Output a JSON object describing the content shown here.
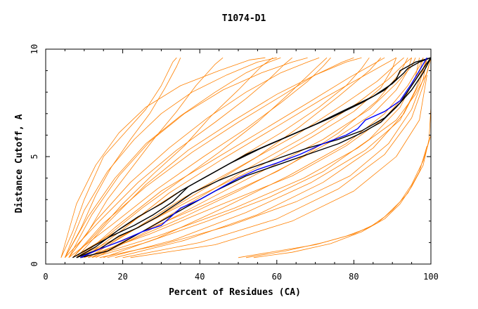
{
  "chart_data": {
    "type": "line",
    "title": "T1074-D1",
    "xlabel": "Percent of Residues (CA)",
    "ylabel": "Distance Cutoff, A",
    "xlim": [
      0,
      100
    ],
    "ylim": [
      0,
      10
    ],
    "x_ticks": [
      "0",
      "20",
      "40",
      "60",
      "80",
      "100"
    ],
    "y_ticks": [
      "0",
      "5",
      "10"
    ],
    "grid": false,
    "legend": "none",
    "colors": {
      "others": "#ff8000",
      "highlight_black": "#000000",
      "highlight_blue": "#0000ff"
    },
    "series": [
      {
        "color": "#ff8000",
        "x": [
          4,
          7,
          10,
          13,
          15,
          20,
          26,
          30,
          33,
          34
        ],
        "y": [
          0.3,
          1.5,
          3,
          4.2,
          5,
          6,
          7.2,
          8.3,
          9.4,
          9.6
        ]
      },
      {
        "color": "#ff8000",
        "x": [
          5,
          9,
          13,
          17,
          22,
          27,
          31,
          34,
          35
        ],
        "y": [
          0.3,
          1.6,
          3.2,
          4.5,
          5.8,
          7,
          8.2,
          9.2,
          9.6
        ]
      },
      {
        "color": "#ff8000",
        "x": [
          6,
          11,
          16,
          22,
          28,
          34,
          39,
          44,
          46
        ],
        "y": [
          0.3,
          1.5,
          3,
          4.4,
          5.8,
          7.1,
          8.3,
          9.3,
          9.6
        ]
      },
      {
        "color": "#ff8000",
        "x": [
          7,
          13,
          20,
          28,
          36,
          43,
          50,
          56,
          59
        ],
        "y": [
          0.3,
          1.4,
          2.8,
          4.2,
          5.5,
          6.9,
          8.1,
          9.2,
          9.6
        ]
      },
      {
        "color": "#ff8000",
        "x": [
          8,
          16,
          25,
          35,
          45,
          55,
          63,
          70,
          73
        ],
        "y": [
          0.3,
          1.3,
          2.6,
          3.9,
          5.2,
          6.6,
          7.9,
          9.1,
          9.6
        ]
      },
      {
        "color": "#ff8000",
        "x": [
          9,
          19,
          31,
          43,
          55,
          66,
          76,
          84,
          87
        ],
        "y": [
          0.3,
          1.2,
          2.4,
          3.7,
          5,
          6.4,
          7.8,
          9,
          9.6
        ]
      },
      {
        "color": "#ff8000",
        "x": [
          10,
          22,
          36,
          50,
          64,
          76,
          86,
          92,
          94
        ],
        "y": [
          0.3,
          1.1,
          2.2,
          3.4,
          4.7,
          6.1,
          7.6,
          8.9,
          9.6
        ]
      },
      {
        "color": "#ff8000",
        "x": [
          12,
          26,
          42,
          58,
          72,
          84,
          92,
          96,
          97
        ],
        "y": [
          0.3,
          1,
          2,
          3.1,
          4.3,
          5.8,
          7.3,
          8.7,
          9.6
        ]
      },
      {
        "color": "#ff8000",
        "x": [
          14,
          30,
          48,
          65,
          79,
          89,
          95,
          98,
          99
        ],
        "y": [
          0.3,
          0.9,
          1.8,
          2.9,
          4.1,
          5.6,
          7.2,
          8.6,
          9.6
        ]
      },
      {
        "color": "#ff8000",
        "x": [
          5,
          14,
          24,
          34,
          44,
          52,
          58,
          62,
          64
        ],
        "y": [
          0.3,
          2,
          3.8,
          5.3,
          6.6,
          7.7,
          8.6,
          9.3,
          9.6
        ]
      },
      {
        "color": "#ff8000",
        "x": [
          6,
          17,
          29,
          41,
          52,
          61,
          68,
          72,
          74
        ],
        "y": [
          0.3,
          1.8,
          3.5,
          5,
          6.3,
          7.5,
          8.5,
          9.2,
          9.6
        ]
      },
      {
        "color": "#ff8000",
        "x": [
          7,
          20,
          34,
          48,
          61,
          71,
          78,
          82,
          84
        ],
        "y": [
          0.3,
          1.7,
          3.3,
          4.7,
          6.1,
          7.3,
          8.3,
          9.1,
          9.6
        ]
      },
      {
        "color": "#ff8000",
        "x": [
          8,
          23,
          39,
          55,
          69,
          80,
          87,
          90,
          91
        ],
        "y": [
          0.3,
          1.6,
          3.1,
          4.5,
          5.9,
          7.1,
          8.2,
          9.1,
          9.6
        ]
      },
      {
        "color": "#ff8000",
        "x": [
          9,
          25,
          43,
          60,
          74,
          85,
          91,
          94,
          95
        ],
        "y": [
          0.3,
          1.5,
          2.9,
          4.3,
          5.7,
          7,
          8.1,
          9,
          9.6
        ]
      },
      {
        "color": "#ff8000",
        "x": [
          10,
          27,
          46,
          64,
          78,
          88,
          94,
          97,
          98
        ],
        "y": [
          0.3,
          1.4,
          2.8,
          4.1,
          5.5,
          6.8,
          8,
          8.9,
          9.6
        ]
      },
      {
        "color": "#ff8000",
        "x": [
          11,
          29,
          49,
          67,
          81,
          91,
          96,
          99,
          100
        ],
        "y": [
          0.3,
          1.3,
          2.6,
          4,
          5.4,
          6.7,
          7.9,
          8.9,
          9.6
        ]
      },
      {
        "color": "#ff8000",
        "x": [
          5,
          11,
          18,
          26,
          35,
          44,
          52,
          58,
          61
        ],
        "y": [
          0.3,
          2.2,
          4,
          5.6,
          6.9,
          8,
          8.9,
          9.4,
          9.6
        ]
      },
      {
        "color": "#ff8000",
        "x": [
          6,
          13,
          22,
          32,
          42,
          52,
          61,
          68,
          71
        ],
        "y": [
          0.3,
          2,
          3.8,
          5.4,
          6.8,
          8,
          8.9,
          9.4,
          9.6
        ]
      },
      {
        "color": "#ff8000",
        "x": [
          7,
          15,
          26,
          38,
          50,
          61,
          70,
          77,
          80
        ],
        "y": [
          0.3,
          1.9,
          3.6,
          5.2,
          6.6,
          7.8,
          8.8,
          9.4,
          9.6
        ]
      },
      {
        "color": "#ff8000",
        "x": [
          9,
          18,
          30,
          44,
          57,
          69,
          79,
          85,
          88
        ],
        "y": [
          0.3,
          1.7,
          3.4,
          4.9,
          6.3,
          7.6,
          8.7,
          9.3,
          9.6
        ]
      },
      {
        "color": "#ff8000",
        "x": [
          11,
          22,
          36,
          51,
          65,
          77,
          86,
          91,
          93
        ],
        "y": [
          0.3,
          1.5,
          3.1,
          4.6,
          6,
          7.4,
          8.5,
          9.3,
          9.6
        ]
      },
      {
        "color": "#ff8000",
        "x": [
          13,
          25,
          41,
          57,
          72,
          84,
          91,
          95,
          96
        ],
        "y": [
          0.3,
          1.4,
          2.9,
          4.4,
          5.8,
          7.2,
          8.4,
          9.2,
          9.6
        ]
      },
      {
        "color": "#ff8000",
        "x": [
          15,
          29,
          46,
          63,
          78,
          88,
          94,
          97,
          98
        ],
        "y": [
          0.3,
          1.2,
          2.6,
          4.1,
          5.6,
          7,
          8.3,
          9.2,
          9.6
        ]
      },
      {
        "color": "#ff8000",
        "x": [
          16,
          33,
          52,
          69,
          83,
          92,
          96,
          98,
          99
        ],
        "y": [
          0.3,
          1.1,
          2.4,
          3.8,
          5.3,
          6.7,
          8.1,
          9.1,
          9.6
        ]
      },
      {
        "color": "#ff8000",
        "x": [
          5,
          10,
          16,
          23,
          30,
          38,
          47,
          55,
          60
        ],
        "y": [
          0.3,
          2.5,
          4.3,
          5.8,
          7,
          8,
          8.8,
          9.4,
          9.6
        ]
      },
      {
        "color": "#ff8000",
        "x": [
          4,
          8,
          13,
          19,
          26,
          35,
          45,
          53,
          57
        ],
        "y": [
          0.3,
          2.8,
          4.6,
          6.1,
          7.3,
          8.3,
          9,
          9.5,
          9.6
        ]
      },
      {
        "color": "#ff8000",
        "x": [
          6,
          12,
          19,
          27,
          36,
          46,
          56,
          64,
          68
        ],
        "y": [
          0.3,
          2.3,
          4.1,
          5.7,
          7,
          8.1,
          8.9,
          9.4,
          9.6
        ]
      },
      {
        "color": "#ff8000",
        "x": [
          8,
          16,
          26,
          37,
          49,
          60,
          70,
          78,
          82
        ],
        "y": [
          0.3,
          1.9,
          3.7,
          5.3,
          6.7,
          7.9,
          8.8,
          9.4,
          9.6
        ]
      },
      {
        "color": "#ff8000",
        "x": [
          10,
          20,
          32,
          46,
          60,
          72,
          82,
          88,
          91
        ],
        "y": [
          0.3,
          1.6,
          3.3,
          4.9,
          6.4,
          7.7,
          8.7,
          9.3,
          9.6
        ]
      },
      {
        "color": "#ff8000",
        "x": [
          12,
          24,
          39,
          54,
          69,
          81,
          89,
          93,
          95
        ],
        "y": [
          0.3,
          1.4,
          3,
          4.6,
          6.1,
          7.5,
          8.6,
          9.3,
          9.6
        ]
      },
      {
        "color": "#ff8000",
        "x": [
          18,
          36,
          55,
          72,
          85,
          93,
          97,
          99
        ],
        "y": [
          0.3,
          1.1,
          2.3,
          3.8,
          5.4,
          7,
          8.4,
          9.6
        ]
      },
      {
        "color": "#ff8000",
        "x": [
          20,
          40,
          60,
          76,
          88,
          95,
          98,
          100
        ],
        "y": [
          0.3,
          1,
          2.1,
          3.5,
          5.1,
          6.8,
          8.3,
          9.6
        ]
      },
      {
        "color": "#ff8000",
        "x": [
          22,
          44,
          64,
          80,
          91,
          97,
          99
        ],
        "y": [
          0.3,
          0.9,
          2,
          3.4,
          5,
          6.7,
          8.8
        ]
      },
      {
        "color": "#ff8000",
        "x": [
          50,
          60,
          70,
          78,
          84,
          88,
          92,
          95,
          98,
          100
        ],
        "y": [
          0.3,
          0.6,
          0.9,
          1.3,
          1.7,
          2.2,
          2.9,
          3.7,
          4.8,
          6
        ]
      },
      {
        "color": "#ff8000",
        "x": [
          52,
          62,
          72,
          80,
          86,
          90,
          94,
          97,
          99
        ],
        "y": [
          0.3,
          0.6,
          1,
          1.4,
          1.9,
          2.5,
          3.3,
          4.3,
          5.5
        ]
      },
      {
        "color": "#ff8000",
        "x": [
          54,
          64,
          74,
          82,
          88,
          92,
          95,
          98,
          99.5,
          100
        ],
        "y": [
          0.3,
          0.55,
          0.95,
          1.5,
          2.1,
          2.8,
          3.6,
          4.6,
          5.8,
          7.3
        ]
      },
      {
        "color": "#000000",
        "x": [
          7,
          12,
          17,
          23,
          28,
          33,
          37,
          42,
          48,
          56,
          65,
          74,
          82,
          88,
          91,
          92,
          96,
          100
        ],
        "y": [
          0.3,
          0.8,
          1.3,
          1.8,
          2.3,
          2.9,
          3.6,
          4.1,
          4.7,
          5.4,
          6.1,
          6.8,
          7.5,
          8.1,
          8.6,
          9,
          9.4,
          9.6
        ]
      },
      {
        "color": "#000000",
        "x": [
          8,
          13,
          19,
          24,
          30,
          35,
          39,
          45,
          52,
          61,
          70,
          78,
          85,
          90,
          93,
          94,
          97,
          100
        ],
        "y": [
          0.3,
          0.8,
          1.6,
          2.2,
          2.8,
          3.4,
          3.8,
          4.4,
          5.1,
          5.8,
          6.5,
          7.2,
          7.8,
          8.4,
          8.9,
          9.1,
          9.4,
          9.6
        ]
      },
      {
        "color": "#000000",
        "x": [
          8,
          14,
          19,
          24,
          29,
          34,
          38,
          45,
          52,
          60,
          68,
          76,
          82,
          88,
          92,
          95,
          98,
          100
        ],
        "y": [
          0.3,
          0.7,
          1.3,
          1.7,
          2.2,
          2.8,
          3.3,
          3.9,
          4.4,
          4.9,
          5.4,
          5.8,
          6.2,
          6.8,
          7.5,
          8.3,
          9.1,
          9.6
        ]
      },
      {
        "color": "#000000",
        "x": [
          9,
          16,
          23,
          30,
          36,
          44,
          52,
          60,
          68,
          76,
          82,
          87,
          91,
          95,
          98,
          100
        ],
        "y": [
          0.3,
          0.6,
          1.3,
          2,
          2.6,
          3.4,
          4.1,
          4.6,
          5.1,
          5.6,
          6.1,
          6.6,
          7.3,
          8.1,
          8.9,
          9.6
        ]
      },
      {
        "color": "#0000ff",
        "x": [
          9,
          14,
          20,
          25,
          30,
          35,
          40,
          45,
          50,
          55,
          60,
          66,
          72,
          78,
          81,
          83,
          88,
          92,
          95,
          99
        ],
        "y": [
          0.3,
          0.7,
          1.1,
          1.5,
          1.8,
          2.6,
          3,
          3.5,
          4,
          4.4,
          4.7,
          5.1,
          5.6,
          6,
          6.3,
          6.7,
          7.1,
          7.6,
          8.4,
          9.6
        ]
      }
    ]
  }
}
